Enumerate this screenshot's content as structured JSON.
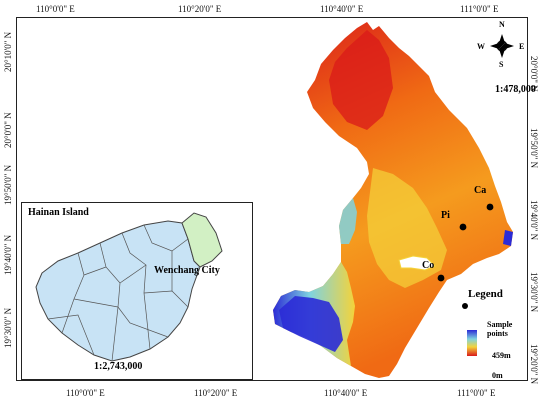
{
  "axes": {
    "top_lon": [
      "110°0'0\" E",
      "110°20'0\" E",
      "110°40'0\" E",
      "111°0'0\" E"
    ],
    "bottom_lon": [
      "110°0'0\" E",
      "110°20'0\" E",
      "110°40'0\" E",
      "111°0'0\" E"
    ],
    "left_lat": [
      "20°10'0\" N",
      "20°0'0\" N",
      "19°50'0\" N",
      "19°40'0\" N",
      "19°30'0\" N"
    ],
    "right_lat": [
      "20°0'0\" N",
      "19°50'0\" N",
      "19°40'0\" N",
      "19°30'0\" N",
      "19°20'0\" N"
    ]
  },
  "main_map": {
    "scale": "1:478,000",
    "compass": {
      "n": "N",
      "s": "S",
      "e": "E",
      "w": "W"
    },
    "sample_points": [
      {
        "label": "Ca"
      },
      {
        "label": "Pi"
      },
      {
        "label": "Co"
      }
    ]
  },
  "inset": {
    "title": "Hainan Island",
    "city_label": "Wenchang City",
    "scale": "1:2,743,000"
  },
  "legend": {
    "title": "Legend",
    "sample_label": "Sample points",
    "elev_max": "459m",
    "elev_min": "0m"
  },
  "colors": {
    "low": "#2b2bd6",
    "mid_low": "#7fd3e0",
    "mid": "#f4d33a",
    "high": "#f06a14",
    "peak": "#d91a1a",
    "hainan_fill": "#c8e3f5",
    "wenchang_fill": "#d2f0c4",
    "frame": "#222222"
  }
}
